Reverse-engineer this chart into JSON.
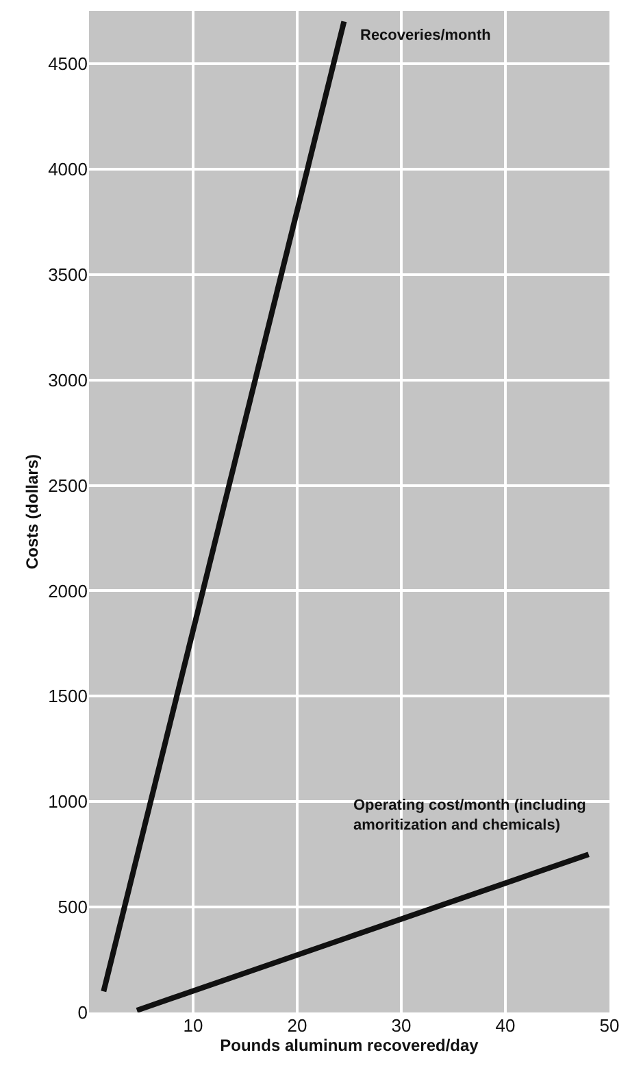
{
  "chart_data": {
    "type": "line",
    "xlabel": "Pounds aluminum recovered/day",
    "ylabel": "Costs (dollars)",
    "series": [
      {
        "name": "Recoveries/month",
        "color": "#111111",
        "x": [
          1.4,
          24.5
        ],
        "values": [
          100,
          4700
        ]
      },
      {
        "name": "Operating cost/month (including amoritization and chemicals)",
        "color": "#111111",
        "x": [
          4.6,
          48
        ],
        "values": [
          10,
          750
        ]
      }
    ],
    "xlim": [
      0,
      50
    ],
    "xticks": [
      10,
      20,
      30,
      40,
      50
    ],
    "ylim": [
      0,
      4750
    ],
    "yticks": [
      0,
      500,
      1000,
      1500,
      2000,
      2500,
      3000,
      3500,
      4000,
      4500
    ],
    "grid": true,
    "legend": false,
    "marker": "none",
    "line_style": "solid"
  }
}
